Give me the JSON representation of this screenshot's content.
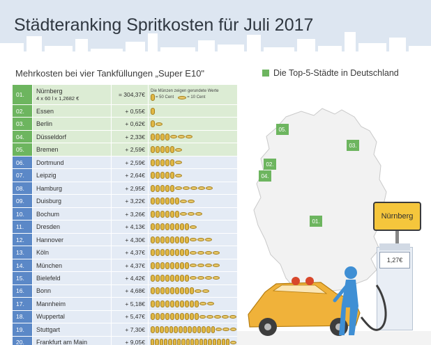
{
  "header": {
    "title": "Städteranking Spritkosten für Juli 2017"
  },
  "subtitle": "Mehrkosten bei vier Tankfüllungen „Super E10\"",
  "legend": {
    "label": "Die Top-5-Städte in Deutschland",
    "color": "#6db55f"
  },
  "coin_legend": {
    "note": "Die Münzen zeigen gerundete Werte",
    "big": "= 50 Cent",
    "small": "= 10 Cent"
  },
  "rows": [
    {
      "rank": "01.",
      "city": "Nürnberg",
      "formula": "4 x 60 l x 1,2682 €",
      "value": "= 304,37€",
      "top5": true,
      "big_coins": 0,
      "small_coins": 0
    },
    {
      "rank": "02.",
      "city": "Essen",
      "value": "+ 0,55€",
      "top5": true,
      "big_coins": 1,
      "small_coins": 0
    },
    {
      "rank": "03.",
      "city": "Berlin",
      "value": "+ 0,62€",
      "top5": true,
      "big_coins": 1,
      "small_coins": 1
    },
    {
      "rank": "04.",
      "city": "Düsseldorf",
      "value": "+ 2,33€",
      "top5": true,
      "big_coins": 4,
      "small_coins": 3
    },
    {
      "rank": "05.",
      "city": "Bremen",
      "value": "+ 2,59€",
      "top5": true,
      "big_coins": 5,
      "small_coins": 1
    },
    {
      "rank": "06.",
      "city": "Dortmund",
      "value": "+ 2,59€",
      "top5": false,
      "big_coins": 5,
      "small_coins": 1
    },
    {
      "rank": "07.",
      "city": "Leipzig",
      "value": "+ 2,64€",
      "top5": false,
      "big_coins": 5,
      "small_coins": 1
    },
    {
      "rank": "08.",
      "city": "Hamburg",
      "value": "+ 2,95€",
      "top5": false,
      "big_coins": 5,
      "small_coins": 5
    },
    {
      "rank": "09.",
      "city": "Duisburg",
      "value": "+ 3,22€",
      "top5": false,
      "big_coins": 6,
      "small_coins": 2
    },
    {
      "rank": "10.",
      "city": "Bochum",
      "value": "+ 3,26€",
      "top5": false,
      "big_coins": 6,
      "small_coins": 3
    },
    {
      "rank": "11.",
      "city": "Dresden",
      "value": "+ 4,13€",
      "top5": false,
      "big_coins": 8,
      "small_coins": 1
    },
    {
      "rank": "12.",
      "city": "Hannover",
      "value": "+ 4,30€",
      "top5": false,
      "big_coins": 8,
      "small_coins": 3
    },
    {
      "rank": "13.",
      "city": "Köln",
      "value": "+ 4,37€",
      "top5": false,
      "big_coins": 8,
      "small_coins": 4
    },
    {
      "rank": "14.",
      "city": "München",
      "value": "+ 4,37€",
      "top5": false,
      "big_coins": 8,
      "small_coins": 4
    },
    {
      "rank": "15.",
      "city": "Bielefeld",
      "value": "+ 4,42€",
      "top5": false,
      "big_coins": 8,
      "small_coins": 4
    },
    {
      "rank": "16.",
      "city": "Bonn",
      "value": "+ 4,68€",
      "top5": false,
      "big_coins": 9,
      "small_coins": 2
    },
    {
      "rank": "17.",
      "city": "Mannheim",
      "value": "+ 5,18€",
      "top5": false,
      "big_coins": 10,
      "small_coins": 2
    },
    {
      "rank": "18.",
      "city": "Wuppertal",
      "value": "+ 5,47€",
      "top5": false,
      "big_coins": 10,
      "small_coins": 5
    },
    {
      "rank": "19.",
      "city": "Stuttgart",
      "value": "+ 7,30€",
      "top5": false,
      "big_coins": 14,
      "small_coins": 3
    },
    {
      "rank": "20.",
      "city": "Frankfurt am Main",
      "value": "+ 9,05€",
      "top5": false,
      "big_coins": 18,
      "small_coins": 1
    }
  ],
  "map": {
    "labels": [
      "05.",
      "03.",
      "02.",
      "04.",
      "01."
    ]
  },
  "sign": {
    "city": "Nürnberg"
  },
  "pump": {
    "price": "1,27€"
  },
  "colors": {
    "top5_rank": "#6db55f",
    "other_rank": "#5b88c7",
    "header_band": "#dde6f1",
    "sign": "#f5c63c",
    "car": "#f0b23a",
    "attendant": "#3f8fd4",
    "coin": "#e0b846"
  }
}
